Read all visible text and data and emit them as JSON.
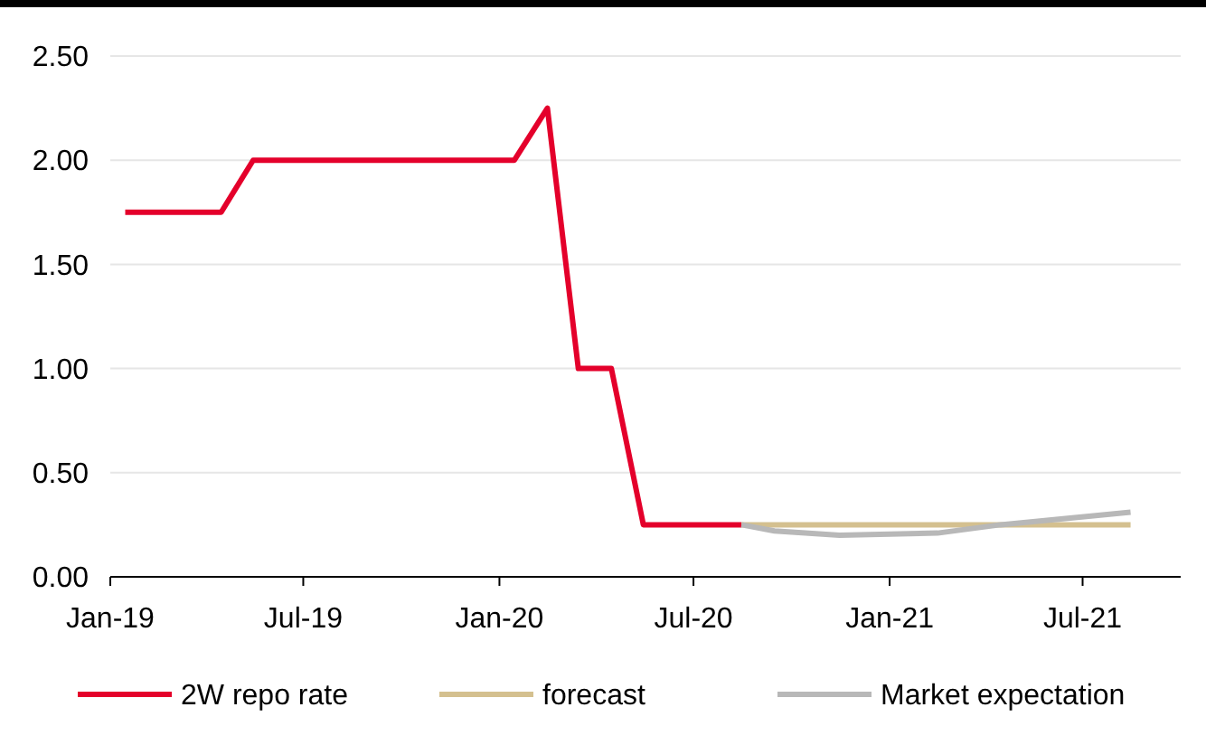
{
  "chart_data": {
    "type": "line",
    "x": [
      "2019-01-15",
      "2019-04-15",
      "2019-05-15",
      "2020-01-15",
      "2020-02-15",
      "2020-03-15",
      "2020-04-15",
      "2020-05-15",
      "2020-08-15"
    ],
    "series": [
      {
        "name": "2W repo rate",
        "color": "#e4002b",
        "values": [
          1.75,
          1.75,
          2.0,
          2.0,
          2.25,
          1.0,
          1.0,
          0.25,
          0.25
        ]
      },
      {
        "name": "forecast",
        "color": "#d4c08f",
        "x": [
          "2020-08-15",
          "2021-08-15"
        ],
        "values": [
          0.25,
          0.25
        ]
      },
      {
        "name": "Market expectation",
        "color": "#b8b8b8",
        "x": [
          "2020-08-15",
          "2020-09-15",
          "2020-11-15",
          "2021-02-15",
          "2021-04-15",
          "2021-08-15"
        ],
        "values": [
          0.25,
          0.22,
          0.2,
          0.21,
          0.25,
          0.31
        ]
      }
    ],
    "xlim": [
      "2019-01-01",
      "2021-10-01"
    ],
    "xticks": [
      {
        "value": "2019-01-01",
        "label": "Jan-19"
      },
      {
        "value": "2019-07-01",
        "label": "Jul-19"
      },
      {
        "value": "2020-01-01",
        "label": "Jan-20"
      },
      {
        "value": "2020-07-01",
        "label": "Jul-20"
      },
      {
        "value": "2021-01-01",
        "label": "Jan-21"
      },
      {
        "value": "2021-07-01",
        "label": "Jul-21"
      }
    ],
    "ylim": [
      0,
      2.5
    ],
    "yticks": [
      {
        "value": 0,
        "label": "0.00"
      },
      {
        "value": 0.5,
        "label": "0.50"
      },
      {
        "value": 1,
        "label": "1.00"
      },
      {
        "value": 1.5,
        "label": "1.50"
      },
      {
        "value": 2,
        "label": "2.00"
      },
      {
        "value": 2.5,
        "label": "2.50"
      }
    ],
    "grid": "y",
    "legend": "bottom",
    "marker": "none",
    "line_style": "solid"
  }
}
